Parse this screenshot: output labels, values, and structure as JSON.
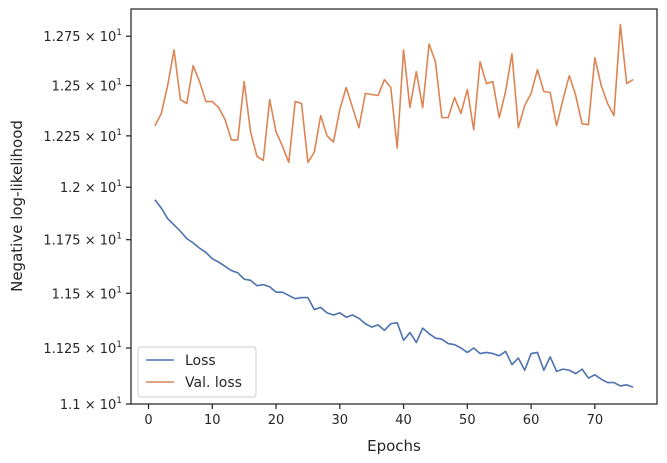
{
  "chart_data": {
    "type": "line",
    "xlabel": "Epochs",
    "ylabel": "Negative log-likelihood",
    "xlim": [
      -2.75,
      79.75
    ],
    "ylim": [
      11.0,
      12.89
    ],
    "y_scale": "log",
    "grid": false,
    "legend_position": "lower-left",
    "x_ticks": [
      {
        "value": 0,
        "label": "0"
      },
      {
        "value": 10,
        "label": "10"
      },
      {
        "value": 20,
        "label": "20"
      },
      {
        "value": 30,
        "label": "30"
      },
      {
        "value": 40,
        "label": "40"
      },
      {
        "value": 50,
        "label": "50"
      },
      {
        "value": 60,
        "label": "60"
      },
      {
        "value": 70,
        "label": "70"
      }
    ],
    "y_ticks": [
      {
        "value": 11.0,
        "mantissa": "1.1",
        "exponent": "1"
      },
      {
        "value": 11.25,
        "mantissa": "1.125",
        "exponent": "1"
      },
      {
        "value": 11.5,
        "mantissa": "1.15",
        "exponent": "1"
      },
      {
        "value": 11.75,
        "mantissa": "1.175",
        "exponent": "1"
      },
      {
        "value": 12.0,
        "mantissa": "1.2",
        "exponent": "1"
      },
      {
        "value": 12.25,
        "mantissa": "1.225",
        "exponent": "1"
      },
      {
        "value": 12.5,
        "mantissa": "1.25",
        "exponent": "1"
      },
      {
        "value": 12.75,
        "mantissa": "1.275",
        "exponent": "1"
      }
    ],
    "x": [
      1,
      2,
      3,
      4,
      5,
      6,
      7,
      8,
      9,
      10,
      11,
      12,
      13,
      14,
      15,
      16,
      17,
      18,
      19,
      20,
      21,
      22,
      23,
      24,
      25,
      26,
      27,
      28,
      29,
      30,
      31,
      32,
      33,
      34,
      35,
      36,
      37,
      38,
      39,
      40,
      41,
      42,
      43,
      44,
      45,
      46,
      47,
      48,
      49,
      50,
      51,
      52,
      53,
      54,
      55,
      56,
      57,
      58,
      59,
      60,
      61,
      62,
      63,
      64,
      65,
      66,
      67,
      68,
      69,
      70,
      71,
      72,
      73,
      74,
      75,
      76
    ],
    "series": [
      {
        "name": "Loss",
        "color": "#4c72b0",
        "values": [
          11.94,
          11.9,
          11.85,
          11.82,
          11.79,
          11.755,
          11.735,
          11.71,
          11.69,
          11.66,
          11.645,
          11.625,
          11.605,
          11.595,
          11.565,
          11.56,
          11.535,
          11.54,
          11.53,
          11.505,
          11.505,
          11.49,
          11.475,
          11.48,
          11.48,
          11.425,
          11.435,
          11.41,
          11.4,
          11.41,
          11.39,
          11.4,
          11.385,
          11.36,
          11.345,
          11.355,
          11.33,
          11.36,
          11.365,
          11.285,
          11.32,
          11.275,
          11.34,
          11.315,
          11.295,
          11.29,
          11.27,
          11.265,
          11.25,
          11.23,
          11.25,
          11.225,
          11.23,
          11.225,
          11.215,
          11.235,
          11.175,
          11.205,
          11.15,
          11.225,
          11.23,
          11.15,
          11.21,
          11.145,
          11.155,
          11.15,
          11.135,
          11.155,
          11.115,
          11.13,
          11.11,
          11.095,
          11.095,
          11.08,
          11.085,
          11.075
        ]
      },
      {
        "name": "Val. loss",
        "color": "#dd8452",
        "values": [
          12.3,
          12.36,
          12.5,
          12.68,
          12.43,
          12.41,
          12.6,
          12.52,
          12.42,
          12.42,
          12.39,
          12.33,
          12.23,
          12.23,
          12.52,
          12.27,
          12.15,
          12.13,
          12.43,
          12.27,
          12.2,
          12.12,
          12.42,
          12.41,
          12.12,
          12.17,
          12.35,
          12.25,
          12.22,
          12.38,
          12.49,
          12.39,
          12.29,
          12.46,
          12.455,
          12.45,
          12.53,
          12.49,
          12.19,
          12.68,
          12.39,
          12.57,
          12.39,
          12.71,
          12.62,
          12.34,
          12.34,
          12.44,
          12.36,
          12.48,
          12.28,
          12.62,
          12.51,
          12.52,
          12.34,
          12.47,
          12.66,
          12.29,
          12.4,
          12.46,
          12.58,
          12.47,
          12.465,
          12.3,
          12.43,
          12.55,
          12.45,
          12.31,
          12.305,
          12.64,
          12.5,
          12.41,
          12.35,
          12.81,
          12.51,
          12.53
        ]
      }
    ]
  }
}
